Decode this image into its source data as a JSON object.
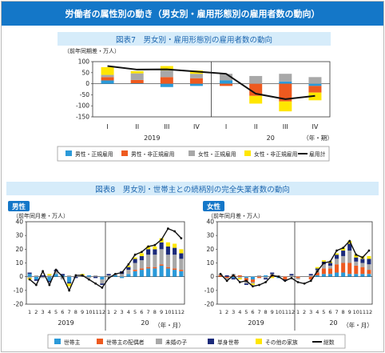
{
  "header": {
    "title": "労働者の属性別の動き（男女別・雇用形態別の雇用者数の動向）"
  },
  "chart_data": [
    {
      "id": "fig7",
      "type": "bar",
      "caption": "図表7　男女別・雇用形態別の雇用者数の動向",
      "ylabel": "（前年同期差・万人）",
      "ylim": [
        -150,
        100
      ],
      "yticks": [
        100,
        50,
        0,
        -50,
        -100,
        -150
      ],
      "xunit": "（年・期）",
      "categories": [
        "I",
        "II",
        "III",
        "IV",
        "I",
        "II",
        "III",
        "IV"
      ],
      "year_labels": [
        {
          "label": "2019",
          "start": 0,
          "end": 3
        },
        {
          "label": "20",
          "start": 4,
          "end": 7
        }
      ],
      "series": [
        {
          "name": "男性・正規雇用",
          "color": "#2b9ad9",
          "kind": "bar",
          "values": [
            15,
            2,
            -15,
            -10,
            15,
            0,
            10,
            -10
          ]
        },
        {
          "name": "男性・非正規雇用",
          "color": "#ee5a1f",
          "kind": "bar",
          "values": [
            15,
            15,
            30,
            25,
            -10,
            -55,
            -80,
            -30
          ]
        },
        {
          "name": "女性・正規雇用",
          "color": "#a8a8a8",
          "kind": "bar",
          "values": [
            10,
            30,
            30,
            20,
            30,
            35,
            35,
            30
          ]
        },
        {
          "name": "女性・非正規雇用",
          "color": "#ffe600",
          "kind": "bar",
          "values": [
            35,
            10,
            20,
            15,
            0,
            -35,
            -45,
            -35
          ]
        },
        {
          "name": "雇用計",
          "color": "#111111",
          "kind": "line",
          "values": [
            80,
            64,
            65,
            55,
            45,
            -45,
            -70,
            -55
          ]
        }
      ]
    },
    {
      "id": "fig8",
      "caption": "図表8　男女別・世帯主との続柄別の完全失業者数の動向",
      "panels": [
        {
          "id": "male",
          "type": "bar",
          "title": "男性",
          "ylabel": "（前年同月差・万人）",
          "ylim": [
            -20,
            40
          ],
          "yticks": [
            40,
            30,
            20,
            10,
            0,
            -10,
            -20
          ],
          "categories": [
            "1",
            "2",
            "3",
            "4",
            "5",
            "6",
            "7",
            "8",
            "9",
            "10",
            "11",
            "12",
            "1",
            "2",
            "3",
            "4",
            "5",
            "6",
            "7",
            "8",
            "9",
            "10",
            "11",
            "12"
          ],
          "year_labels": [
            {
              "label": "2019",
              "start": 0,
              "end": 11
            },
            {
              "label": "20",
              "start": 12,
              "end": 23
            }
          ],
          "series": [
            {
              "name": "世帯主",
              "values": [
                2,
                -2,
                0,
                -3,
                2,
                1,
                -4,
                0,
                0,
                1,
                0,
                -2,
                0,
                1,
                -1,
                2,
                4,
                5,
                6,
                6,
                8,
                6,
                5,
                4
              ]
            },
            {
              "name": "世帯主の配偶者",
              "values": [
                0,
                0,
                0,
                0,
                0,
                0,
                0,
                0,
                0,
                0,
                0,
                0,
                0,
                0,
                0,
                0,
                1,
                1,
                1,
                1,
                1,
                1,
                1,
                1
              ]
            },
            {
              "name": "未婚の子",
              "values": [
                -1,
                1,
                -1,
                1,
                2,
                -2,
                1,
                0,
                1,
                -1,
                1,
                -3,
                1,
                1,
                2,
                3,
                5,
                6,
                9,
                9,
                11,
                9,
                10,
                8
              ]
            },
            {
              "name": "単身世帯",
              "values": [
                1,
                -1,
                1,
                -1,
                1,
                1,
                -1,
                -1,
                0,
                0,
                -1,
                -1,
                1,
                0,
                2,
                2,
                3,
                3,
                4,
                4,
                5,
                6,
                5,
                4
              ]
            },
            {
              "name": "その他の家族",
              "values": [
                -1,
                0,
                0,
                1,
                0,
                0,
                -2,
                0,
                1,
                0,
                0,
                0,
                0,
                0,
                0,
                1,
                1,
                2,
                2,
                2,
                3,
                3,
                3,
                3
              ]
            },
            {
              "name": "総数",
              "values": [
                -2,
                -6,
                4,
                -6,
                5,
                0,
                -10,
                1,
                1,
                -2,
                -5,
                -8,
                -1,
                2,
                3,
                9,
                16,
                18,
                22,
                23,
                27,
                35,
                33,
                28
              ]
            }
          ]
        },
        {
          "id": "female",
          "type": "bar",
          "title": "女性",
          "ylabel": "（前年同月差・万人）",
          "ylim": [
            -20,
            40
          ],
          "yticks": [
            40,
            30,
            20,
            10,
            0,
            -10,
            -20
          ],
          "categories": [
            "1",
            "2",
            "3",
            "4",
            "5",
            "6",
            "7",
            "8",
            "9",
            "10",
            "11",
            "12",
            "1",
            "2",
            "3",
            "4",
            "5",
            "6",
            "7",
            "8",
            "9",
            "10",
            "11",
            "12"
          ],
          "year_labels": [
            {
              "label": "2019",
              "start": 0,
              "end": 11
            },
            {
              "label": "20",
              "start": 12,
              "end": 23
            }
          ],
          "series": [
            {
              "name": "世帯主",
              "values": [
                0,
                0,
                -1,
                0,
                -1,
                -2,
                0,
                1,
                0,
                -1,
                0,
                0,
                0,
                0,
                0,
                1,
                2,
                2,
                3,
                3,
                2,
                2,
                2,
                2
              ]
            },
            {
              "name": "世帯主の配偶者",
              "values": [
                1,
                -1,
                1,
                1,
                -2,
                -2,
                -1,
                0,
                1,
                0,
                -2,
                0,
                -1,
                0,
                -2,
                2,
                4,
                4,
                6,
                7,
                8,
                6,
                5,
                3
              ]
            },
            {
              "name": "未婚の子",
              "values": [
                1,
                -1,
                1,
                -1,
                -2,
                -1,
                1,
                -1,
                1,
                1,
                0,
                1,
                -1,
                0,
                1,
                2,
                3,
                2,
                4,
                5,
                9,
                3,
                3,
                4
              ]
            },
            {
              "name": "単身世帯",
              "values": [
                0,
                1,
                -1,
                0,
                -1,
                0,
                0,
                -1,
                1,
                0,
                -1,
                1,
                0,
                0,
                1,
                1,
                2,
                2,
                3,
                4,
                5,
                3,
                3,
                4
              ]
            },
            {
              "name": "その他の家族",
              "values": [
                0,
                0,
                0,
                -1,
                0,
                -1,
                0,
                0,
                -1,
                0,
                0,
                0,
                0,
                0,
                0,
                1,
                1,
                1,
                1,
                2,
                2,
                2,
                2,
                2
              ]
            },
            {
              "name": "総数",
              "values": [
                2,
                -3,
                1,
                -4,
                -3,
                -7,
                -6,
                -4,
                1,
                0,
                -3,
                -1,
                -4,
                -5,
                -3,
                4,
                10,
                11,
                19,
                21,
                26,
                16,
                14,
                19
              ]
            }
          ]
        }
      ],
      "xunit": "（年・月）",
      "legend": [
        {
          "name": "世帯主",
          "color": "#2b9ad9",
          "kind": "bar"
        },
        {
          "name": "世帯主の配偶者",
          "color": "#ee5a1f",
          "kind": "bar"
        },
        {
          "name": "未婚の子",
          "color": "#a8a8a8",
          "kind": "bar"
        },
        {
          "name": "単身世帯",
          "color": "#1b2a7a",
          "kind": "bar"
        },
        {
          "name": "その他の家族",
          "color": "#ffe600",
          "kind": "bar"
        },
        {
          "name": "総数",
          "color": "#111111",
          "kind": "line"
        }
      ]
    }
  ]
}
